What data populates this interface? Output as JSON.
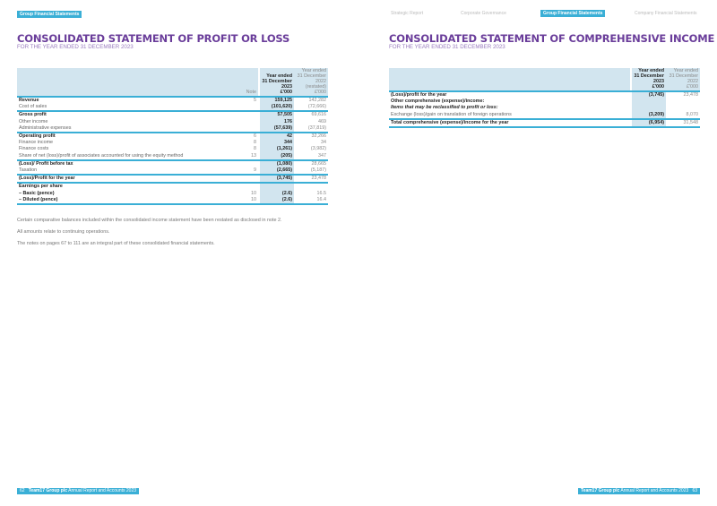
{
  "left_page": {
    "section_tag": "Group Financial Statements",
    "title": "CONSOLIDATED STATEMENT OF PROFIT OR LOSS",
    "subtitle": "FOR THE YEAR ENDED 31 DECEMBER 2023",
    "header": {
      "note": "Note",
      "current": [
        "Year ended",
        "31 December",
        "2023",
        "£'000"
      ],
      "prior": [
        "Year ended",
        "31 December",
        "2022",
        "(restated)",
        "£'000"
      ]
    },
    "rows": [
      {
        "label": "Revenue",
        "note": "5",
        "current": "159,125",
        "prior": "142,282",
        "style": "bold"
      },
      {
        "label": "Cost of sales",
        "note": "",
        "current": "(101,620)",
        "prior": "(72,666)",
        "style": "",
        "end": true
      },
      {
        "label": "Gross profit",
        "note": "",
        "current": "57,505",
        "prior": "69,616",
        "style": "bold"
      },
      {
        "label": "Other income",
        "note": "",
        "current": "176",
        "prior": "469",
        "style": ""
      },
      {
        "label": "Administrative expenses",
        "note": "",
        "current": "(57,639)",
        "prior": "(37,819)",
        "style": "",
        "end": true
      },
      {
        "label": "Operating profit",
        "note": "6",
        "current": "42",
        "prior": "32,266",
        "style": "bold"
      },
      {
        "label": "Finance income",
        "note": "8",
        "current": "344",
        "prior": "34",
        "style": ""
      },
      {
        "label": "Finance costs",
        "note": "8",
        "current": "(1,261)",
        "prior": "(3,982)",
        "style": ""
      },
      {
        "label": "Share of net (loss)/profit of associates accounted for using the equity method",
        "note": "13",
        "current": "(205)",
        "prior": "347",
        "style": "",
        "end": true
      },
      {
        "label": "(Loss)/ Profit before tax",
        "note": "",
        "current": "(1,080)",
        "prior": "28,665",
        "style": "bold"
      },
      {
        "label": "Taxation",
        "note": "9",
        "current": "(2,665)",
        "prior": "(5,187)",
        "style": "",
        "end": true
      },
      {
        "label": "(Loss)/Profit for the year",
        "note": "",
        "current": "(3,745)",
        "prior": "23,478",
        "style": "bold",
        "end": true
      },
      {
        "label": "Earnings per share",
        "note": "",
        "current": "",
        "prior": "",
        "style": "bold"
      },
      {
        "label": "– Basic (pence)",
        "note": "10",
        "current": "(2.6)",
        "prior": "16.5",
        "style": "bold"
      },
      {
        "label": "– Diluted (pence)",
        "note": "10",
        "current": "(2.6)",
        "prior": "16.4",
        "style": "bold",
        "end": true
      }
    ],
    "notes": [
      "Certain comparative balances included within the consolidated income statement have been restated as disclosed in note 2.",
      "All amounts relate to continuing operations.",
      "The notes on pages 67 to 111 are an integral part of these consolidated financial statements."
    ],
    "footer": {
      "page": "62",
      "company": "Team17 Group plc",
      "report": "Annual Report and Accounts 2023"
    }
  },
  "right_page": {
    "nav": [
      "Strategic Report",
      "Corporate Governance",
      "Group Financial Statements",
      "Company Financial Statements"
    ],
    "active_nav": 2,
    "title": "CONSOLIDATED STATEMENT OF COMPREHENSIVE INCOME",
    "subtitle": "FOR THE YEAR ENDED 31 DECEMBER 2023",
    "header": {
      "current": [
        "Year ended",
        "31 December",
        "2023",
        "£'000"
      ],
      "prior": [
        "Year ended",
        "31 December",
        "2022",
        "£'000"
      ]
    },
    "rows": [
      {
        "label": "(Loss)/profit for the year",
        "current": "(3,745)",
        "prior": "23,478",
        "style": "bold"
      },
      {
        "label": "Other comprehensive (expense)/income:",
        "current": "",
        "prior": "",
        "style": "bold"
      },
      {
        "label": "Items that may be reclassified to profit or loss:",
        "current": "",
        "prior": "",
        "style": "italic"
      },
      {
        "label": "Exchange (loss)/gain on translation of foreign operations",
        "current": "(3,209)",
        "prior": "8,070",
        "style": "",
        "end": true
      },
      {
        "label": "Total comprehensive (expense)/income for the year",
        "current": "(6,954)",
        "prior": "31,548",
        "style": "bold",
        "end": true
      }
    ],
    "footer": {
      "page": "63",
      "company": "Team17 Group plc",
      "report": "Annual Report and Accounts 2023"
    }
  },
  "colors": {
    "accent": "#3aafd6",
    "shade": "#d2e5ef",
    "title": "#6a3d9a"
  }
}
